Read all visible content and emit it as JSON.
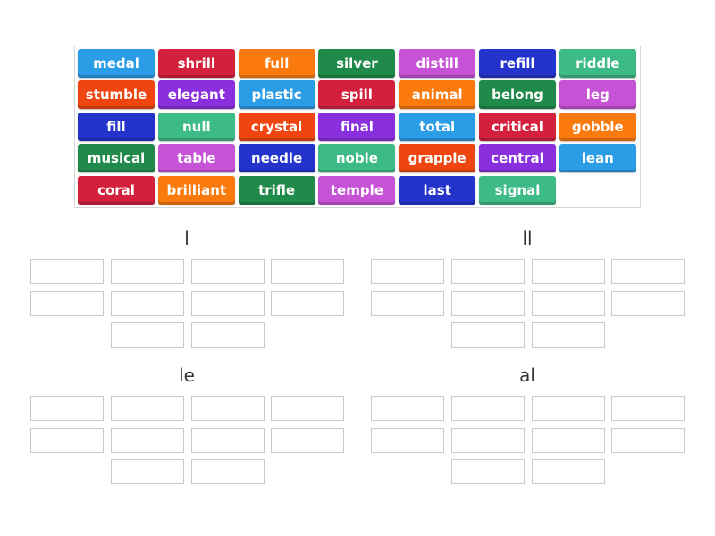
{
  "tiles": [
    {
      "word": "medal",
      "color": "blue"
    },
    {
      "word": "shrill",
      "color": "red"
    },
    {
      "word": "full",
      "color": "orange"
    },
    {
      "word": "silver",
      "color": "green"
    },
    {
      "word": "distill",
      "color": "pink"
    },
    {
      "word": "refill",
      "color": "navy"
    },
    {
      "word": "riddle",
      "color": "teal"
    },
    {
      "word": "stumble",
      "color": "redorange"
    },
    {
      "word": "elegant",
      "color": "violet"
    },
    {
      "word": "plastic",
      "color": "blue"
    },
    {
      "word": "spill",
      "color": "red"
    },
    {
      "word": "animal",
      "color": "orange"
    },
    {
      "word": "belong",
      "color": "green"
    },
    {
      "word": "leg",
      "color": "pink"
    },
    {
      "word": "fill",
      "color": "navy"
    },
    {
      "word": "null",
      "color": "teal"
    },
    {
      "word": "crystal",
      "color": "redorange"
    },
    {
      "word": "final",
      "color": "violet"
    },
    {
      "word": "total",
      "color": "blue"
    },
    {
      "word": "critical",
      "color": "red"
    },
    {
      "word": "gobble",
      "color": "orange"
    },
    {
      "word": "musical",
      "color": "green"
    },
    {
      "word": "table",
      "color": "pink"
    },
    {
      "word": "needle",
      "color": "navy"
    },
    {
      "word": "noble",
      "color": "teal"
    },
    {
      "word": "grapple",
      "color": "redorange"
    },
    {
      "word": "central",
      "color": "violet"
    },
    {
      "word": "lean",
      "color": "blue"
    },
    {
      "word": "coral",
      "color": "red"
    },
    {
      "word": "brilliant",
      "color": "orange"
    },
    {
      "word": "trifle",
      "color": "green"
    },
    {
      "word": "temple",
      "color": "pink"
    },
    {
      "word": "last",
      "color": "navy"
    },
    {
      "word": "signal",
      "color": "teal"
    }
  ],
  "colors": {
    "blue": "#2b9de6",
    "red": "#d3213d",
    "orange": "#fa7a0e",
    "green": "#1f8a4a",
    "pink": "#c653d6",
    "navy": "#2434cb",
    "teal": "#3dbb86",
    "redorange": "#ef4611",
    "violet": "#8a2fde"
  },
  "groups": [
    {
      "title": "l",
      "slots": 10
    },
    {
      "title": "ll",
      "slots": 10
    },
    {
      "title": "le",
      "slots": 10
    },
    {
      "title": "al",
      "slots": 10
    }
  ]
}
